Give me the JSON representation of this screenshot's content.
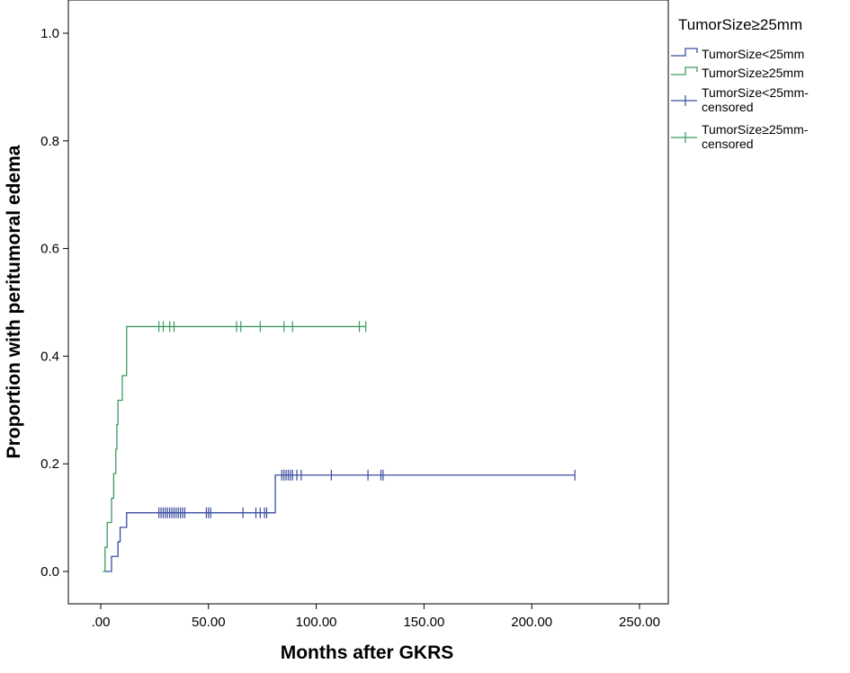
{
  "chart_data": {
    "type": "line",
    "subtype": "kaplan-meier",
    "xlabel": "Months after GKRS",
    "ylabel": "Proportion with peritumoral edema",
    "xlim": [
      -10,
      260
    ],
    "ylim": [
      -0.06,
      1.06
    ],
    "x_ticks": [
      0,
      50,
      100,
      150,
      200,
      250
    ],
    "x_tick_labels": [
      ".00",
      "50.00",
      "100.00",
      "150.00",
      "200.00",
      "250.00"
    ],
    "y_ticks": [
      0,
      0.2,
      0.4,
      0.6,
      0.8,
      1.0
    ],
    "y_tick_labels": [
      "0.0",
      "0.2",
      "0.4",
      "0.6",
      "0.8",
      "1.0"
    ],
    "grid": false,
    "legend": {
      "title": "TumorSize≥25mm",
      "position": "right-top",
      "entries": [
        {
          "label": "TumorSize<25mm",
          "kind": "line",
          "color": "#3b4da0"
        },
        {
          "label": "TumorSize≥25mm",
          "kind": "line",
          "color": "#3c9a5f"
        },
        {
          "label": "TumorSize<25mm-censored",
          "lines": [
            "TumorSize<25mm-",
            "censored"
          ],
          "kind": "censor",
          "color": "#3b4da0"
        },
        {
          "label": "TumorSize≥25mm-censored",
          "lines": [
            "TumorSize≥25mm-",
            "censored"
          ],
          "kind": "censor",
          "color": "#3c9a5f"
        }
      ]
    },
    "series": [
      {
        "name": "TumorSize<25mm",
        "color": "#3b4da0",
        "steps": [
          [
            2,
            0
          ],
          [
            5,
            0.028
          ],
          [
            8,
            0.055
          ],
          [
            9,
            0.082
          ],
          [
            12,
            0.109
          ],
          [
            81,
            0.179
          ],
          [
            220,
            0.179
          ]
        ],
        "censored": [
          27,
          28,
          29,
          30,
          31,
          32,
          33,
          34,
          35,
          36,
          37,
          38,
          39,
          49,
          50,
          51,
          66,
          72,
          74,
          76,
          77,
          84,
          85,
          86,
          87,
          88,
          89,
          91,
          93,
          107,
          124,
          130,
          131,
          220
        ]
      },
      {
        "name": "TumorSize≥25mm",
        "color": "#3c9a5f",
        "steps": [
          [
            1,
            0
          ],
          [
            2,
            0.045
          ],
          [
            3,
            0.091
          ],
          [
            5,
            0.136
          ],
          [
            6,
            0.182
          ],
          [
            7,
            0.227
          ],
          [
            7.5,
            0.273
          ],
          [
            8,
            0.318
          ],
          [
            10,
            0.364
          ],
          [
            12,
            0.455
          ],
          [
            123,
            0.455
          ]
        ],
        "censored": [
          27,
          29,
          32,
          34,
          63,
          65,
          74,
          85,
          89,
          120,
          123
        ]
      }
    ]
  }
}
